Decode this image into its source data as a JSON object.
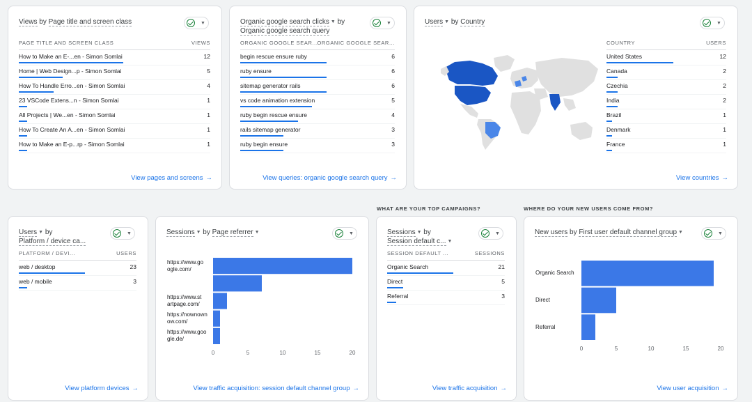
{
  "card1": {
    "title_metric": "Views",
    "title_by": "by",
    "title_dim": "Page title and screen class",
    "col_dim": "PAGE TITLE AND SCREEN CLASS",
    "col_val": "VIEWS",
    "rows": [
      {
        "label": "How to Make an E-...en - Simon Somlai",
        "value": "12",
        "frac": 1.0
      },
      {
        "label": "Home | Web Design...p - Simon Somlai",
        "value": "5",
        "frac": 0.42
      },
      {
        "label": "How To Handle Erro...en - Simon Somlai",
        "value": "4",
        "frac": 0.33
      },
      {
        "label": "23 VSCode Extens...n - Simon Somlai",
        "value": "1",
        "frac": 0.08
      },
      {
        "label": "All Projects | We...en - Simon Somlai",
        "value": "1",
        "frac": 0.08
      },
      {
        "label": "How To Create An A...en - Simon Somlai",
        "value": "1",
        "frac": 0.08
      },
      {
        "label": "How to Make an E-p...rp - Simon Somlai",
        "value": "1",
        "frac": 0.08
      }
    ],
    "link": "View pages and screens"
  },
  "card2": {
    "title_metric": "Organic google search clicks",
    "title_by": "by",
    "title_dim": "Organic google search query",
    "col_dim": "ORGANIC GOOGLE SEAR...",
    "col_val": "ORGANIC GOOGLE SEAR...",
    "rows": [
      {
        "label": "begin rescue ensure ruby",
        "value": "6",
        "frac": 1.0
      },
      {
        "label": "ruby ensure",
        "value": "6",
        "frac": 1.0
      },
      {
        "label": "sitemap generator rails",
        "value": "6",
        "frac": 1.0
      },
      {
        "label": "vs code animation extension",
        "value": "5",
        "frac": 0.83
      },
      {
        "label": "ruby begin rescue ensure",
        "value": "4",
        "frac": 0.67
      },
      {
        "label": "rails sitemap generator",
        "value": "3",
        "frac": 0.5
      },
      {
        "label": "ruby begin ensure",
        "value": "3",
        "frac": 0.5
      }
    ],
    "link": "View queries: organic google search query"
  },
  "card3": {
    "title_metric": "Users",
    "title_by": "by",
    "title_dim": "Country",
    "col_dim": "COUNTRY",
    "col_val": "USERS",
    "rows": [
      {
        "label": "United States",
        "value": "12",
        "frac": 1.0
      },
      {
        "label": "Canada",
        "value": "2",
        "frac": 0.17
      },
      {
        "label": "Czechia",
        "value": "2",
        "frac": 0.17
      },
      {
        "label": "India",
        "value": "2",
        "frac": 0.17
      },
      {
        "label": "Brazil",
        "value": "1",
        "frac": 0.08
      },
      {
        "label": "Denmark",
        "value": "1",
        "frac": 0.08
      },
      {
        "label": "France",
        "value": "1",
        "frac": 0.08
      }
    ],
    "link": "View countries",
    "colors": {
      "high": "#1a56c4",
      "mid": "#4a86e8",
      "low": "#8ab4f8",
      "none": "#e0e0e0"
    }
  },
  "card4": {
    "title_metric": "Users",
    "title_by": "by",
    "title_dim": "Platform / device ca...",
    "col_dim": "PLATFORM / DEVI...",
    "col_val": "USERS",
    "rows": [
      {
        "label": "web / desktop",
        "value": "23",
        "frac": 1.0
      },
      {
        "label": "web / mobile",
        "value": "3",
        "frac": 0.13
      }
    ],
    "link": "View platform devices"
  },
  "card5": {
    "title_metric": "Sessions",
    "title_by": "by",
    "title_dim": "Page referrer",
    "link": "View traffic acquisition: session default channel group"
  },
  "card6": {
    "section": "WHAT ARE YOUR TOP CAMPAIGNS?",
    "title_metric": "Sessions",
    "title_by": "by",
    "title_dim": "Session default c...",
    "col_dim": "SESSION DEFAULT ...",
    "col_val": "SESSIONS",
    "rows": [
      {
        "label": "Organic Search",
        "value": "21",
        "frac": 1.0
      },
      {
        "label": "Direct",
        "value": "5",
        "frac": 0.24
      },
      {
        "label": "Referral",
        "value": "3",
        "frac": 0.14
      }
    ],
    "link": "View traffic acquisition"
  },
  "card7": {
    "section": "WHERE DO YOUR NEW USERS COME FROM?",
    "title_metric": "New users",
    "title_by": "by",
    "title_dim": "First user default channel group",
    "link": "View user acquisition"
  },
  "chart_data": [
    {
      "type": "bar",
      "orientation": "horizontal",
      "categories": [
        "https://www.google.com/",
        "",
        "https://www.startpage.com/",
        "https://nownownow.com/",
        "https://www.google.de/"
      ],
      "category_labels": [
        [
          "https://www.go",
          "ogle.com/"
        ],
        [],
        [
          "https://www.st",
          "artpage.com/"
        ],
        [
          "https://nownown",
          "ow.com/"
        ],
        [
          "https://www.goo",
          "gle.de/"
        ]
      ],
      "values": [
        20,
        7,
        2,
        1,
        1
      ],
      "xlim": [
        0,
        20
      ],
      "ticks": [
        "0",
        "5",
        "10",
        "15",
        "20"
      ],
      "color": "#3b78e7"
    },
    {
      "type": "bar",
      "orientation": "horizontal",
      "categories": [
        "Organic Search",
        "Direct",
        "Referral"
      ],
      "values": [
        19,
        5,
        2
      ],
      "xlim": [
        0,
        20
      ],
      "ticks": [
        "0",
        "5",
        "10",
        "15",
        "20"
      ],
      "color": "#3b78e7"
    }
  ]
}
